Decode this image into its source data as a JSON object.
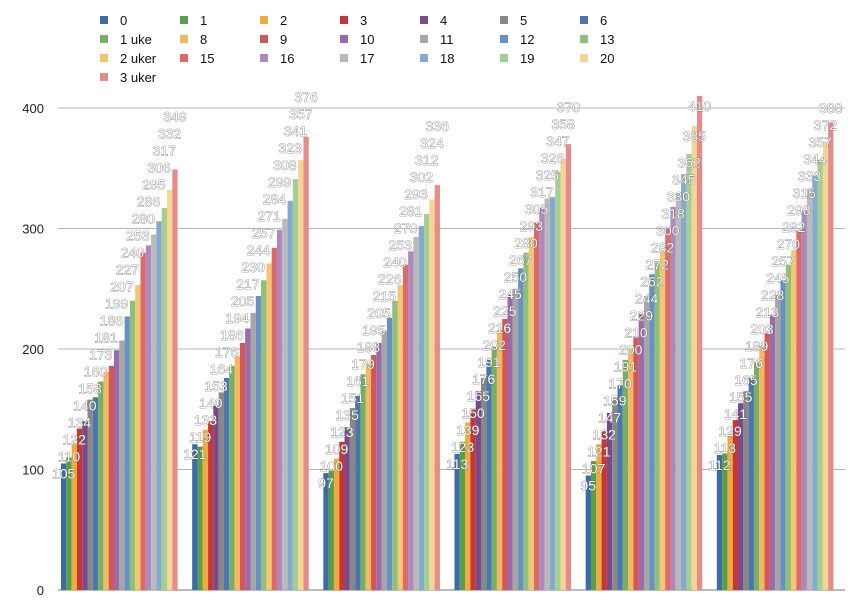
{
  "chart_data": {
    "type": "bar",
    "title": "",
    "xlabel": "",
    "ylabel": "",
    "ylim": [
      0,
      400
    ],
    "yticks": [
      0,
      100,
      200,
      300,
      400
    ],
    "grid": true,
    "legend_position": "top",
    "categories": [
      "",
      "",
      "",
      "",
      "",
      ""
    ],
    "series": [
      {
        "name": "0",
        "color": "#3b6ca6",
        "values": [
          105,
          121,
          97,
          113,
          95,
          112
        ]
      },
      {
        "name": "1",
        "color": "#5a9e48",
        "values": [
          110,
          119,
          100,
          123,
          107,
          113
        ]
      },
      {
        "name": "2",
        "color": "#eeac3e",
        "values": [
          122,
          133,
          109,
          139,
          121,
          129
        ]
      },
      {
        "name": "3",
        "color": "#c93434",
        "values": [
          134,
          140,
          123,
          150,
          132,
          141
        ]
      },
      {
        "name": "4",
        "color": "#784a8c",
        "values": [
          140,
          153,
          135,
          165,
          147,
          155
        ]
      },
      {
        "name": "5",
        "color": "#888888",
        "values": [
          158,
          164,
          151,
          176,
          159,
          165
        ]
      },
      {
        "name": "6",
        "color": "#4a76ad",
        "values": [
          160,
          176,
          161,
          191,
          170,
          176
        ]
      },
      {
        "name": "1 uke",
        "color": "#77b064",
        "values": [
          173,
          186,
          179,
          202,
          191,
          189
        ]
      },
      {
        "name": "8",
        "color": "#f1ba60",
        "values": [
          181,
          194,
          188,
          216,
          200,
          203
        ]
      },
      {
        "name": "9",
        "color": "#d45656",
        "values": [
          186,
          205,
          195,
          225,
          210,
          213
        ]
      },
      {
        "name": "10",
        "color": "#9a6aab",
        "values": [
          199,
          217,
          205,
          245,
          229,
          228
        ]
      },
      {
        "name": "11",
        "color": "#a6a6a6",
        "values": [
          207,
          230,
          215,
          250,
          244,
          245
        ]
      },
      {
        "name": "12",
        "color": "#6890c2",
        "values": [
          227,
          244,
          226,
          267,
          262,
          257
        ]
      },
      {
        "name": "13",
        "color": "#8ec07c",
        "values": [
          240,
          257,
          240,
          280,
          272,
          270
        ]
      },
      {
        "name": "2 uker",
        "color": "#f3c672",
        "values": [
          253,
          271,
          253,
          293,
          282,
          282
        ]
      },
      {
        "name": "15",
        "color": "#dc6a6a",
        "values": [
          280,
          284,
          270,
          305,
          300,
          298
        ]
      },
      {
        "name": "16",
        "color": "#ad89bd",
        "values": [
          286,
          299,
          281,
          317,
          318,
          315
        ]
      },
      {
        "name": "17",
        "color": "#bababa",
        "values": [
          295,
          308,
          293,
          325,
          330,
          333
        ]
      },
      {
        "name": "18",
        "color": "#86a9d0",
        "values": [
          306,
          323,
          302,
          326,
          345,
          344
        ]
      },
      {
        "name": "19",
        "color": "#a3cf93",
        "values": [
          317,
          341,
          312,
          347,
          362,
          357
        ]
      },
      {
        "name": "20",
        "color": "#f6d493",
        "values": [
          332,
          357,
          324,
          358,
          385,
          372
        ]
      },
      {
        "name": "3 uker",
        "color": "#e48b8b",
        "values": [
          349,
          376,
          336,
          370,
          410,
          388
        ]
      }
    ]
  }
}
